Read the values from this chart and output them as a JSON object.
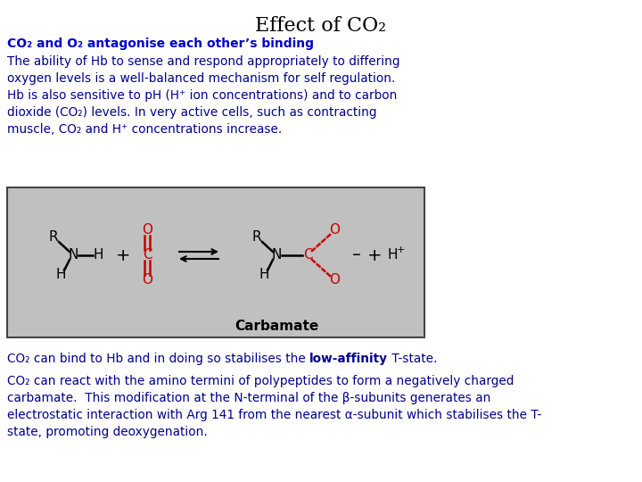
{
  "title": "Effect of CO₂",
  "subtitle": "CO₂ and O₂ antagonise each other’s binding",
  "body_text_1": "The ability of Hb to sense and respond appropriately to differing\noxygen levels is a well-balanced mechanism for self regulation.\nHb is also sensitive to pH (H⁺ ion concentrations) and to carbon\ndioxide (CO₂) levels. In very active cells, such as contracting\nmuscle, CO₂ and H⁺ concentrations increase.",
  "body_text_2_pre": "CO₂ can bind to Hb and in doing so stabilises the ",
  "body_text_2_bold": "low-affinity",
  "body_text_2_post": " T-state.",
  "body_text_3": "CO₂ can react with the amino termini of polypeptides to form a negatively charged\ncarbamate.  This modification at the N-terminal of the β-subunits generates an\nelectrostatic interaction with Arg 141 from the nearest α-subunit which stabilises the T-\nstate, promoting deoxygenation.",
  "title_color": "#000000",
  "subtitle_color": "#0000cc",
  "body_color": "#00008B",
  "background_color": "#ffffff",
  "image_bg": "#c0c0c0",
  "title_fontsize": 16,
  "subtitle_fontsize": 10,
  "body_fontsize": 9.8,
  "bold_phrase": "low-affinity"
}
